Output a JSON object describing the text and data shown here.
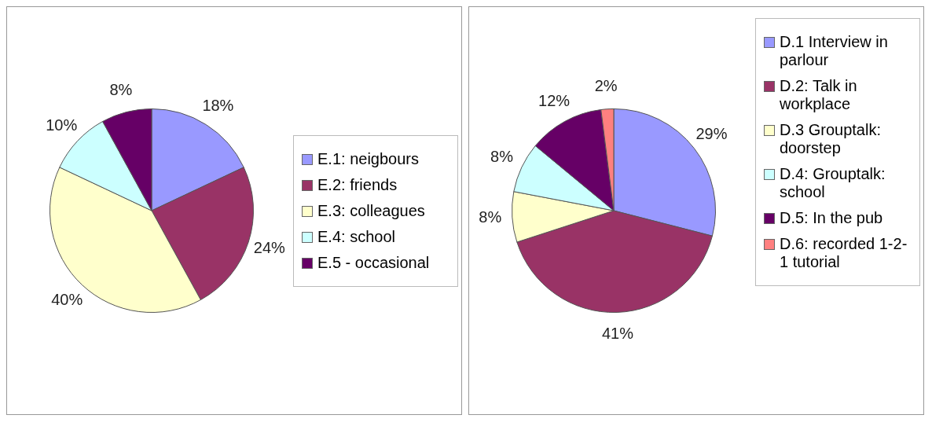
{
  "chart_data": [
    {
      "type": "pie",
      "categories": [
        "E.1: neigbours",
        "E.2: friends",
        "E.3: colleagues",
        "E.4: school",
        "E.5 - occasional"
      ],
      "values": [
        18,
        24,
        40,
        10,
        8
      ],
      "colors": [
        "#9999ff",
        "#993366",
        "#ffffcc",
        "#ccffff",
        "#660066"
      ],
      "value_labels": [
        "18%",
        "24%",
        "40%",
        "10%",
        "8%"
      ],
      "legend": "right"
    },
    {
      "type": "pie",
      "categories": [
        "D.1 Interview in parlour",
        "D.2: Talk in workplace",
        "D.3 Grouptalk: doorstep",
        "D.4: Grouptalk: school",
        "D.5: In the pub",
        "D.6: recorded 1-2-1 tutorial"
      ],
      "values": [
        29,
        41,
        8,
        8,
        12,
        2
      ],
      "colors": [
        "#9999ff",
        "#993366",
        "#ffffcc",
        "#ccffff",
        "#660066",
        "#ff8080"
      ],
      "value_labels": [
        "29%",
        "41%",
        "8%",
        "8%",
        "12%",
        "2%"
      ],
      "legend": "top right"
    }
  ]
}
